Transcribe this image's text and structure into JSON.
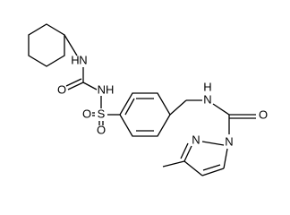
{
  "atoms": [
    {
      "label": "N"
    },
    {
      "label": "H"
    },
    {
      "label": "O"
    },
    {
      "label": "NH"
    },
    {
      "label": "S"
    },
    {
      "label": "O"
    },
    {
      "label": "O"
    },
    {
      "label": "N"
    },
    {
      "label": "H"
    },
    {
      "label": "O"
    },
    {
      "label": "N"
    },
    {
      "label": "N"
    }
  ]
}
